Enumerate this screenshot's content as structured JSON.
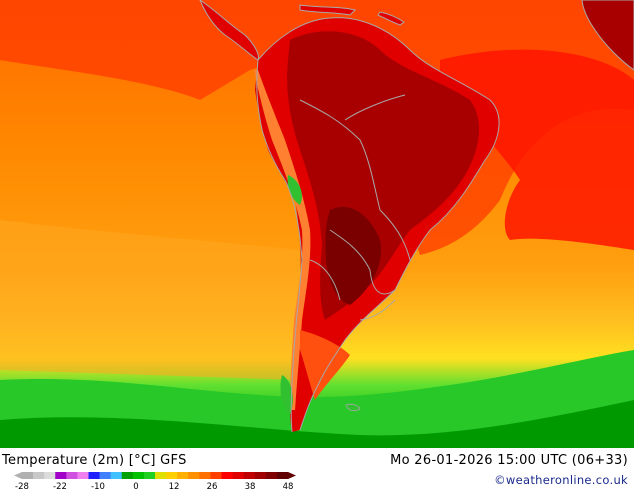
{
  "footer": {
    "title": "Temperature (2m) [°C] GFS",
    "datetime": "Mo 26-01-2026 15:00 UTC (06+33)",
    "credit": "©weatheronline.co.uk"
  },
  "legend": {
    "tick_labels": [
      "-28",
      "-22",
      "-10",
      "0",
      "12",
      "26",
      "38",
      "48"
    ],
    "colors": [
      "#b0b0b0",
      "#c8c8c8",
      "#dcdcdc",
      "#a000c8",
      "#d050e0",
      "#f080f0",
      "#2020ff",
      "#4080ff",
      "#40c0ff",
      "#00a000",
      "#00c000",
      "#20d020",
      "#e0e000",
      "#ffd000",
      "#ffb000",
      "#ff9000",
      "#ff7000",
      "#ff4000",
      "#ff0000",
      "#e00000",
      "#c00000",
      "#a00000",
      "#800000",
      "#600000"
    ]
  },
  "map_colors": {
    "ocean_north": "#ff7a00",
    "ocean_mid": "#ff9a10",
    "ocean_south_warm": "#ffc020",
    "ocean_cold": "#30d030",
    "ocean_coldest": "#00a000",
    "land_hot": "#b00000",
    "land_hottest": "#800000",
    "land_warm": "#ff0000",
    "andes": "#ff6030",
    "borders": "#a8a8a8"
  }
}
